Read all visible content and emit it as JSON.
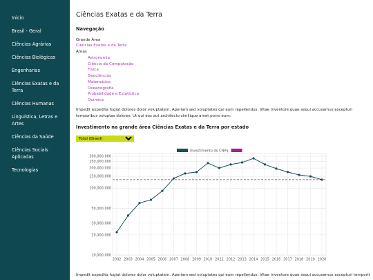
{
  "sidebar": {
    "items": [
      "Início",
      "Brasil - Geral",
      "Ciências Agrárias",
      "Ciências Biológicas",
      "Engenharias",
      "Ciências Exatas e da Terra",
      "Ciências Humanas",
      "Linguística, Letras e Artes",
      "Ciências da Saúde",
      "Ciências Sociais Aplicadas",
      "Tecnologias"
    ]
  },
  "main": {
    "title": "Ciências Exatas e da Terra",
    "nav_heading": "Navegação",
    "area_label": "Grande Área",
    "area_link": "Ciências Exatas e da Terra",
    "subareas_label": "Áreas",
    "subareas": [
      "Astronomia",
      "Ciência da Computação",
      "Física",
      "Geociências",
      "Matemática",
      "Oceanografia",
      "Probabilidade e Estatística",
      "Química"
    ],
    "paragraph": "Impedit expedita fugiat dolores dolor voluptatem. Aperiam sed voluptates qui eum repellendus. Vitae inventore quae sequi accusamus excepturi temporibus voluptas dolores. Ut qui eos aut architecto similique amet porro eum.",
    "chart_heading": "Investimento na grande área Ciências Exatas e da Terra por estado",
    "select_value": "Total (Brasil)",
    "footer_paragraph": "Impedit expedita fugiat dolores dolor voluptatem. Aperiam sed voluptates qui eum repellendus. Vitae inventore quae sequi accusamus excepturi temporibus voluptas"
  },
  "chart_data": {
    "type": "line",
    "log_scale": true,
    "grid": true,
    "categories": [
      "2002",
      "2003",
      "2004",
      "2005",
      "2006",
      "2007",
      "2008",
      "2009",
      "2010",
      "2011",
      "2012",
      "2013",
      "2014",
      "2015",
      "2016",
      "2017",
      "2018",
      "2019",
      "2020"
    ],
    "series": [
      {
        "name": "Investimento do CNPq",
        "color": "#1a4f57",
        "values": [
          22000000,
          39000000,
          60000000,
          67000000,
          91000000,
          140000000,
          166000000,
          174000000,
          237000000,
          200000000,
          226000000,
          242000000,
          279000000,
          226000000,
          196000000,
          174000000,
          158000000,
          150000000,
          134000000
        ]
      }
    ],
    "reference_line": {
      "value": 134000000,
      "color": "#a0208f"
    },
    "ylim": [
      10000000,
      300000000
    ],
    "yticks": [
      {
        "value": 10000000,
        "label": "10,000,000"
      },
      {
        "value": 20000000,
        "label": "20,000,000"
      },
      {
        "value": 30000000,
        "label": "30,000,000"
      },
      {
        "value": 50000000,
        "label": "50,000,000"
      },
      {
        "value": 100000000,
        "label": "100,000,000"
      },
      {
        "value": 150000000,
        "label": "150,000,000"
      },
      {
        "value": 200000000,
        "label": "200,000,000"
      },
      {
        "value": 250000000,
        "label": "250,000,000"
      },
      {
        "value": 300000000,
        "label": "300,000,000"
      }
    ]
  }
}
